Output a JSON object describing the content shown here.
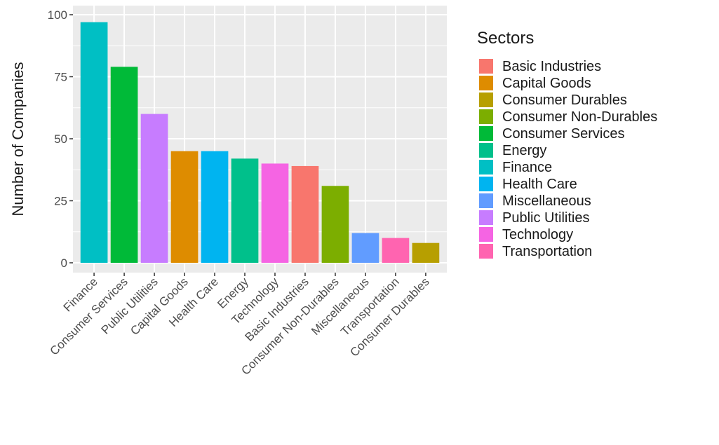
{
  "chart_data": {
    "type": "bar",
    "categories": [
      "Finance",
      "Consumer Services",
      "Public Utilities",
      "Capital Goods",
      "Health Care",
      "Energy",
      "Technology",
      "Basic Industries",
      "Consumer Non-Durables",
      "Miscellaneous",
      "Transportation",
      "Consumer Durables"
    ],
    "values": [
      97,
      79,
      60,
      45,
      45,
      42,
      40,
      39,
      31,
      12,
      10,
      8
    ],
    "title": "",
    "xlabel": "",
    "ylabel": "Number of Companies",
    "ylim": [
      0,
      100
    ],
    "yticks": [
      0,
      25,
      50,
      75,
      100
    ],
    "grid": true,
    "panel_background": "#ebebeb",
    "legend": {
      "title": "Sectors",
      "position": "right",
      "entries": [
        {
          "label": "Basic Industries",
          "color": "#F8766D"
        },
        {
          "label": "Capital Goods",
          "color": "#DE8C00"
        },
        {
          "label": "Consumer Durables",
          "color": "#B79F00"
        },
        {
          "label": "Consumer Non-Durables",
          "color": "#7CAE00"
        },
        {
          "label": "Consumer Services",
          "color": "#00BA38"
        },
        {
          "label": "Energy",
          "color": "#00C08B"
        },
        {
          "label": "Finance",
          "color": "#00BFC4"
        },
        {
          "label": "Health Care",
          "color": "#00B4F0"
        },
        {
          "label": "Miscellaneous",
          "color": "#619CFF"
        },
        {
          "label": "Public Utilities",
          "color": "#C77CFF"
        },
        {
          "label": "Technology",
          "color": "#F564E3"
        },
        {
          "label": "Transportation",
          "color": "#FF64B0"
        }
      ]
    }
  }
}
